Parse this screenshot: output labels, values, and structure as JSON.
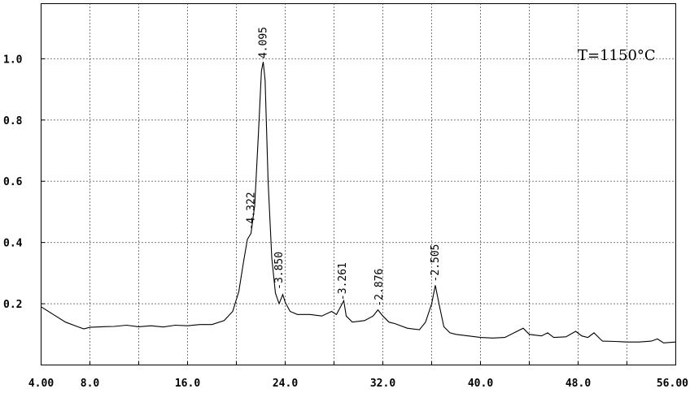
{
  "chart_data": {
    "type": "line",
    "title": "",
    "xlabel": "",
    "ylabel": "",
    "annotation": "T=1150°C",
    "xlim": [
      4.0,
      56.0
    ],
    "ylim": [
      0.0,
      1.18
    ],
    "grid": true,
    "x_ticks": [
      {
        "value": 4.0,
        "label": "4.00"
      },
      {
        "value": 8.0,
        "label": "8.0"
      },
      {
        "value": 16.0,
        "label": "16.0"
      },
      {
        "value": 24.0,
        "label": "24.0"
      },
      {
        "value": 32.0,
        "label": "32.0"
      },
      {
        "value": 40.0,
        "label": "40.0"
      },
      {
        "value": 48.0,
        "label": "48.0"
      },
      {
        "value": 56.0,
        "label": "56.00"
      }
    ],
    "x_grid": [
      8,
      12,
      16,
      20,
      24,
      28,
      32,
      36,
      40,
      44,
      48,
      52
    ],
    "y_ticks": [
      {
        "value": 0.2,
        "label": "0.2"
      },
      {
        "value": 0.4,
        "label": "0.4"
      },
      {
        "value": 0.6,
        "label": "0.6"
      },
      {
        "value": 0.8,
        "label": "0.8"
      },
      {
        "value": 1.0,
        "label": "1.0"
      }
    ],
    "series": [
      {
        "points": [
          [
            4.0,
            0.19
          ],
          [
            5.0,
            0.165
          ],
          [
            6.0,
            0.14
          ],
          [
            7.0,
            0.125
          ],
          [
            7.5,
            0.118
          ],
          [
            8.0,
            0.123
          ],
          [
            9.0,
            0.125
          ],
          [
            10.0,
            0.126
          ],
          [
            11.0,
            0.13
          ],
          [
            12.0,
            0.125
          ],
          [
            13.0,
            0.128
          ],
          [
            14.0,
            0.124
          ],
          [
            15.0,
            0.13
          ],
          [
            16.0,
            0.128
          ],
          [
            17.0,
            0.132
          ],
          [
            18.0,
            0.132
          ],
          [
            19.0,
            0.145
          ],
          [
            19.7,
            0.175
          ],
          [
            20.2,
            0.24
          ],
          [
            20.6,
            0.34
          ],
          [
            20.9,
            0.41
          ],
          [
            21.2,
            0.43
          ],
          [
            21.5,
            0.52
          ],
          [
            21.8,
            0.75
          ],
          [
            22.05,
            0.96
          ],
          [
            22.2,
            0.99
          ],
          [
            22.35,
            0.93
          ],
          [
            22.6,
            0.6
          ],
          [
            22.9,
            0.35
          ],
          [
            23.2,
            0.235
          ],
          [
            23.5,
            0.2
          ],
          [
            23.8,
            0.23
          ],
          [
            24.0,
            0.205
          ],
          [
            24.4,
            0.175
          ],
          [
            25.0,
            0.165
          ],
          [
            26.0,
            0.165
          ],
          [
            27.0,
            0.16
          ],
          [
            27.8,
            0.175
          ],
          [
            28.2,
            0.165
          ],
          [
            28.6,
            0.195
          ],
          [
            28.8,
            0.21
          ],
          [
            29.0,
            0.16
          ],
          [
            29.5,
            0.14
          ],
          [
            30.5,
            0.145
          ],
          [
            31.2,
            0.16
          ],
          [
            31.6,
            0.18
          ],
          [
            32.0,
            0.16
          ],
          [
            32.5,
            0.14
          ],
          [
            33.0,
            0.135
          ],
          [
            34.0,
            0.12
          ],
          [
            35.0,
            0.115
          ],
          [
            35.5,
            0.14
          ],
          [
            36.0,
            0.2
          ],
          [
            36.3,
            0.26
          ],
          [
            36.6,
            0.2
          ],
          [
            37.0,
            0.125
          ],
          [
            37.5,
            0.105
          ],
          [
            38.0,
            0.1
          ],
          [
            39.0,
            0.095
          ],
          [
            40.0,
            0.09
          ],
          [
            41.0,
            0.088
          ],
          [
            42.0,
            0.09
          ],
          [
            43.0,
            0.11
          ],
          [
            43.5,
            0.12
          ],
          [
            44.0,
            0.1
          ],
          [
            45.0,
            0.095
          ],
          [
            45.5,
            0.105
          ],
          [
            46.0,
            0.09
          ],
          [
            47.0,
            0.092
          ],
          [
            47.8,
            0.11
          ],
          [
            48.3,
            0.095
          ],
          [
            48.8,
            0.09
          ],
          [
            49.3,
            0.105
          ],
          [
            49.8,
            0.085
          ],
          [
            50.0,
            0.078
          ],
          [
            51.0,
            0.077
          ],
          [
            52.0,
            0.075
          ],
          [
            53.0,
            0.075
          ],
          [
            54.0,
            0.078
          ],
          [
            54.5,
            0.085
          ],
          [
            55.0,
            0.072
          ],
          [
            56.0,
            0.075
          ]
        ]
      }
    ],
    "peak_labels": [
      {
        "x": 21.2,
        "y": 0.43,
        "label": "-4.322"
      },
      {
        "x": 22.2,
        "y": 0.99,
        "label": "4.095"
      },
      {
        "x": 23.5,
        "y": 0.235,
        "label": "-3.850"
      },
      {
        "x": 28.7,
        "y": 0.2,
        "label": "-3.261"
      },
      {
        "x": 31.7,
        "y": 0.18,
        "label": "-2.876"
      },
      {
        "x": 36.3,
        "y": 0.26,
        "label": "-2.505"
      }
    ]
  }
}
